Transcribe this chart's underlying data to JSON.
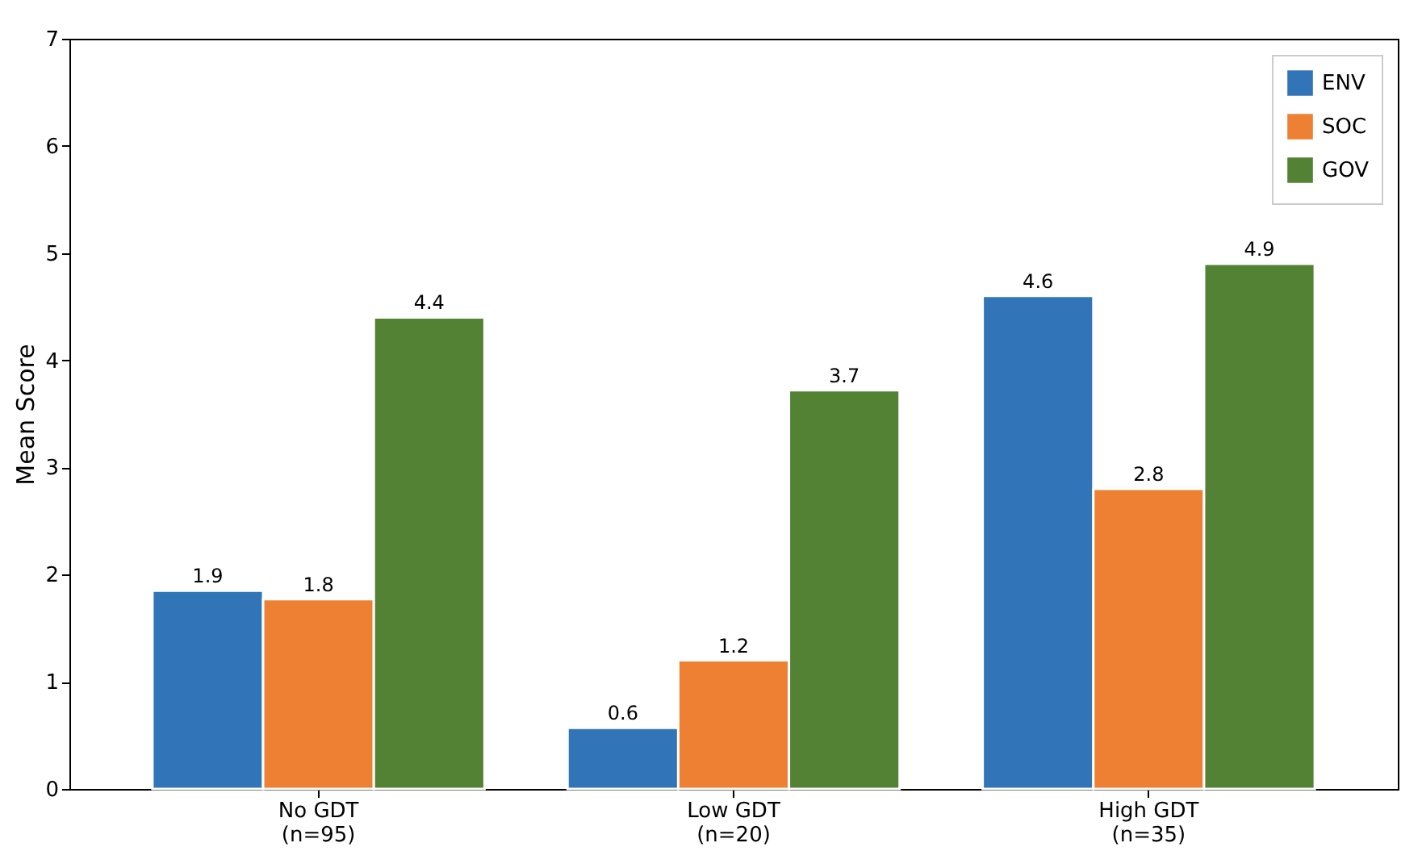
{
  "chart_data": {
    "type": "bar",
    "ylabel": "Mean Score",
    "categories": [
      "No GDT\n(n=95)",
      "Low GDT\n(n=20)",
      "High GDT\n(n=35)"
    ],
    "series": [
      {
        "name": "ENV",
        "color": "#3274b8",
        "values": [
          1.85,
          0.57,
          4.6
        ],
        "value_labels": [
          "1.9",
          "0.6",
          "4.6"
        ]
      },
      {
        "name": "SOC",
        "color": "#ed8032",
        "values": [
          1.77,
          1.2,
          2.8
        ],
        "value_labels": [
          "1.8",
          "1.2",
          "2.8"
        ]
      },
      {
        "name": "GOV",
        "color": "#548235",
        "values": [
          4.4,
          3.72,
          4.9
        ],
        "value_labels": [
          "4.4",
          "3.7",
          "4.9"
        ]
      }
    ],
    "ylim": [
      0,
      7
    ],
    "yticks": [
      0,
      1,
      2,
      3,
      4,
      5,
      6,
      7
    ],
    "grid": false,
    "legend": "top right"
  }
}
